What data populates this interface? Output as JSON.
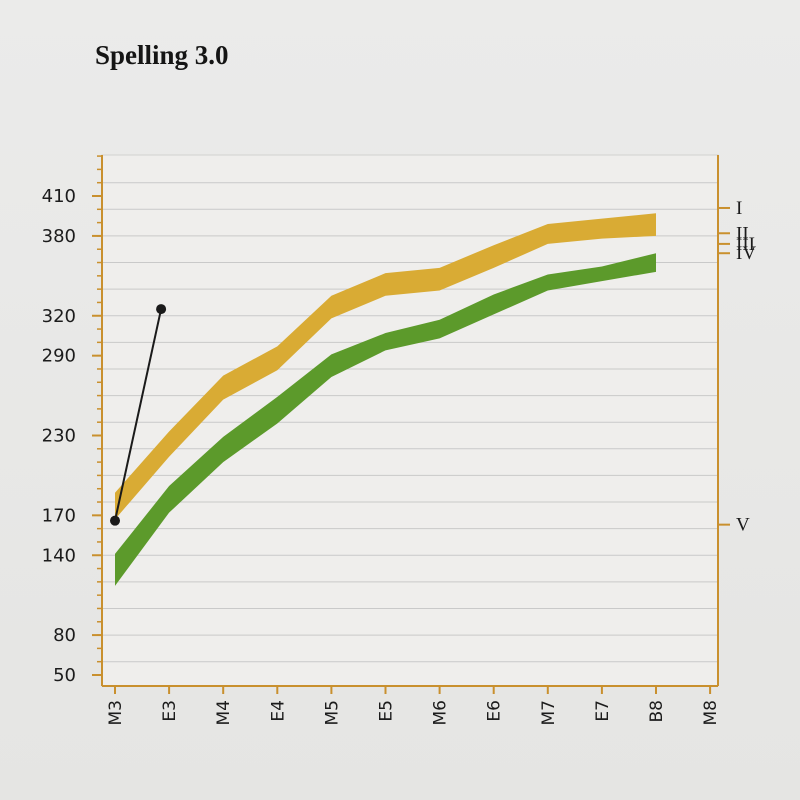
{
  "title": "Spelling 3.0",
  "chart_data": {
    "type": "area",
    "title": "Spelling 3.0",
    "xlabel": "",
    "ylabel": "",
    "categories": [
      "M3",
      "E3",
      "M4",
      "E4",
      "M5",
      "E5",
      "M6",
      "E6",
      "M7",
      "E7",
      "B8",
      "M8"
    ],
    "y_ticks": [
      50,
      80,
      140,
      170,
      230,
      290,
      320,
      380,
      410
    ],
    "ylim": [
      45,
      442
    ],
    "grid": true,
    "right_axis_labels": [
      {
        "label": "I",
        "y": 401
      },
      {
        "label": "II",
        "y": 382
      },
      {
        "label": "III",
        "y": 374
      },
      {
        "label": "IV",
        "y": 367
      },
      {
        "label": "V",
        "y": 163
      }
    ],
    "series": [
      {
        "color": "#d9ab34",
        "x": [
          "M3",
          "E3",
          "M4",
          "E4",
          "M5",
          "E5",
          "M6",
          "E6",
          "M7",
          "E7",
          "B8"
        ],
        "upper": [
          187,
          233,
          275,
          297,
          335,
          352,
          356,
          373,
          389,
          393,
          397
        ],
        "lower": [
          167,
          214,
          257,
          279,
          318,
          335,
          339,
          356,
          374,
          378,
          380
        ]
      },
      {
        "color": "#5c9a2b",
        "x": [
          "M3",
          "E3",
          "M4",
          "E4",
          "M5",
          "E5",
          "M6",
          "E6",
          "M7",
          "E7",
          "B8"
        ],
        "upper": [
          141,
          192,
          229,
          259,
          291,
          307,
          317,
          336,
          351,
          357,
          367
        ],
        "lower": [
          117,
          172,
          210,
          239,
          274,
          294,
          303,
          321,
          339,
          346,
          353
        ]
      }
    ],
    "student_line": {
      "x": [
        "M3",
        "E3"
      ],
      "y": [
        166,
        325
      ],
      "color": "#1a1a1a"
    },
    "colors": {
      "axis": "#c9902e",
      "grid": "#c9c9c9",
      "plot_bg": "#efeeec"
    }
  }
}
